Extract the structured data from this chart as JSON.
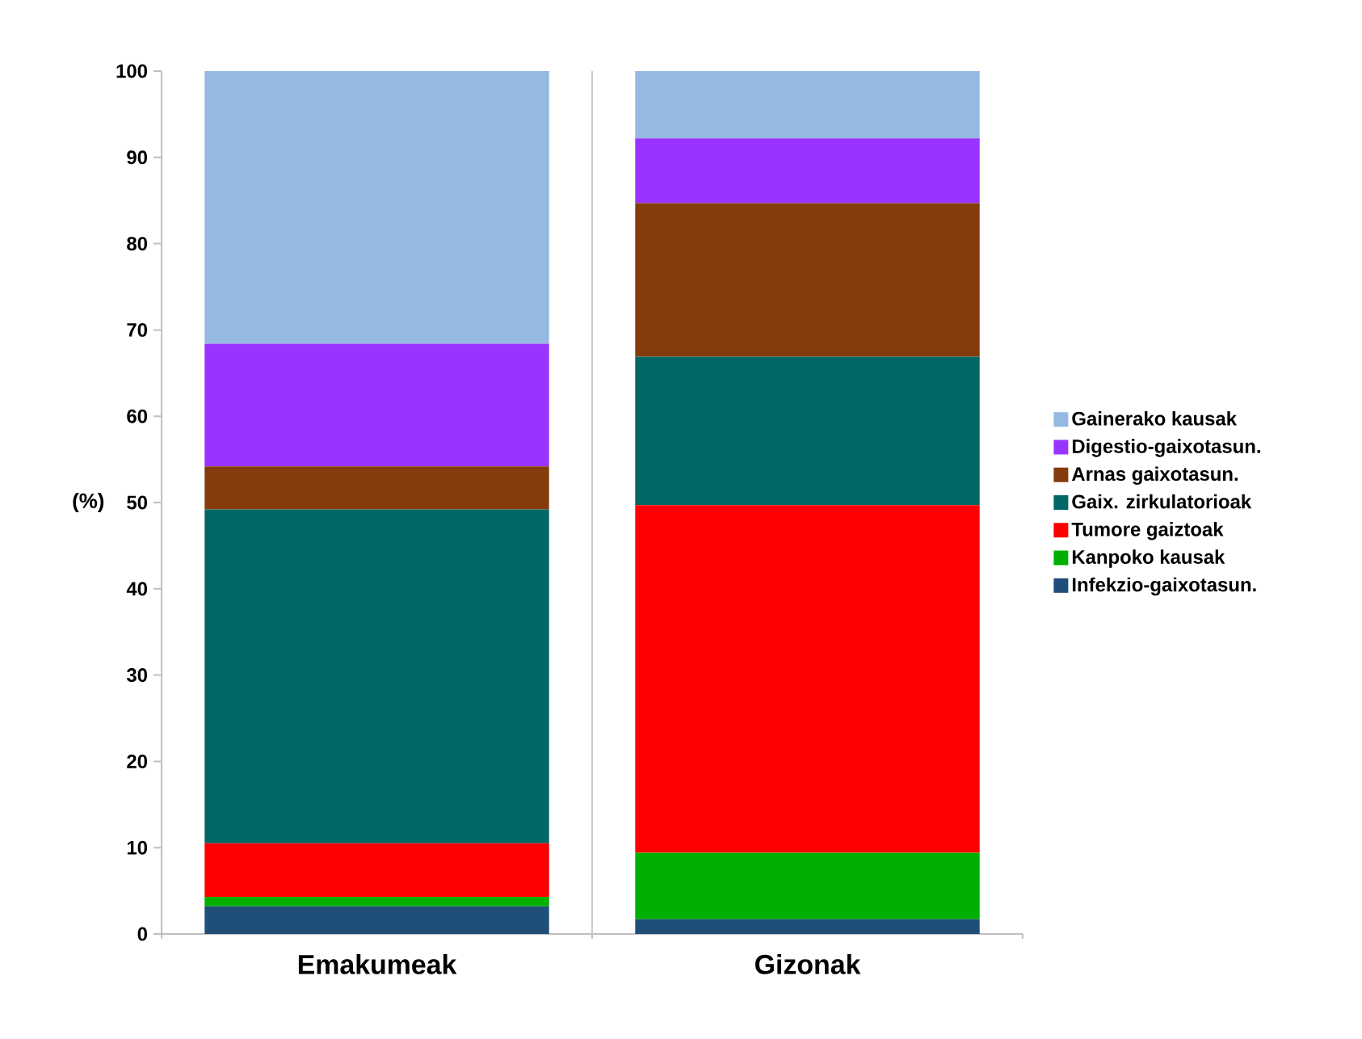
{
  "chart_data": {
    "type": "bar",
    "stacked": true,
    "ylabel": "(%)",
    "categories": [
      "Emakumeak",
      "Gizonak"
    ],
    "ylim": [
      0,
      100
    ],
    "yticks": [
      0,
      10,
      20,
      30,
      40,
      50,
      60,
      70,
      80,
      90,
      100
    ],
    "legend": "right",
    "grid": false,
    "series": [
      {
        "name": "Infekzio-gaixotasun.",
        "color": "#1f4e79",
        "values": [
          3.2,
          1.7
        ]
      },
      {
        "name": "Kanpoko kausak",
        "color": "#00b000",
        "values": [
          1.1,
          7.7
        ]
      },
      {
        "name": "Tumore gaiztoak",
        "color": "#ff0000",
        "values": [
          6.2,
          40.3
        ]
      },
      {
        "name": "Gaix. zirkulatorioak",
        "color": "#006666",
        "values": [
          38.7,
          17.2
        ]
      },
      {
        "name": "Arnas gaixotasun.",
        "color": "#843c0c",
        "values": [
          5.0,
          17.8
        ]
      },
      {
        "name": "Digestio-gaixotasun.",
        "color": "#9933ff",
        "values": [
          14.2,
          7.5
        ]
      },
      {
        "name": "Gainerako kausak",
        "color": "#95b9e0",
        "values": [
          31.6,
          7.8
        ]
      }
    ]
  }
}
